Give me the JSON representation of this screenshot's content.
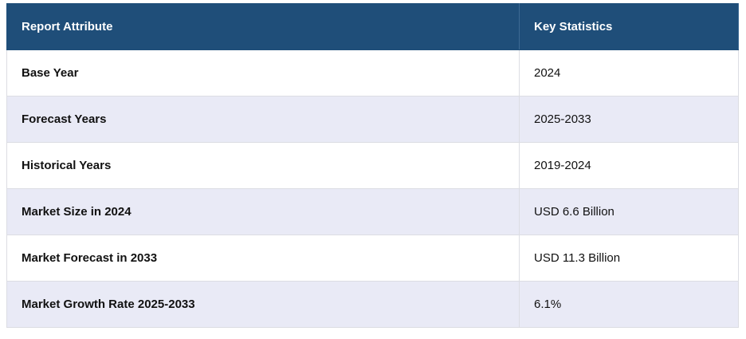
{
  "table": {
    "header": [
      "Report Attribute",
      "Key Statistics"
    ],
    "rows": [
      [
        "Base Year",
        "2024"
      ],
      [
        "Forecast Years",
        "2025-2033"
      ],
      [
        "Historical Years",
        "2019-2024"
      ],
      [
        "Market Size in 2024",
        "USD 6.6 Billion"
      ],
      [
        "Market Forecast in 2033",
        "USD 11.3 Billion"
      ],
      [
        "Market Growth Rate 2025-2033",
        "6.1%"
      ]
    ]
  }
}
